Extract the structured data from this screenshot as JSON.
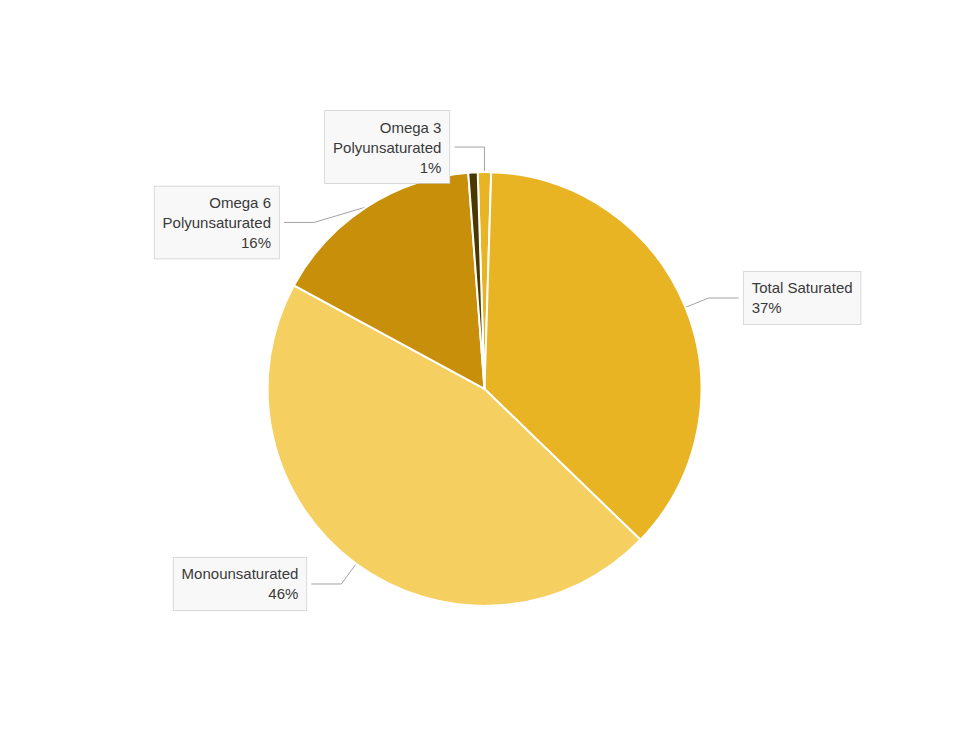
{
  "chart_data": {
    "type": "pie",
    "categories": [
      "Omega 3\nPolyunsaturated",
      "Total Saturated",
      "Monounsaturated",
      "Omega 6\nPolyunsaturated",
      null
    ],
    "values": [
      1,
      37,
      46,
      16,
      0.7
    ],
    "value_labels": [
      "1%",
      "37%",
      "46%",
      "16%",
      null
    ],
    "data_labels": true,
    "colors": [
      "#E8B424",
      "#E8B424",
      "#F5CF60",
      "#C8900A",
      "#4A3800"
    ],
    "legend": false
  }
}
